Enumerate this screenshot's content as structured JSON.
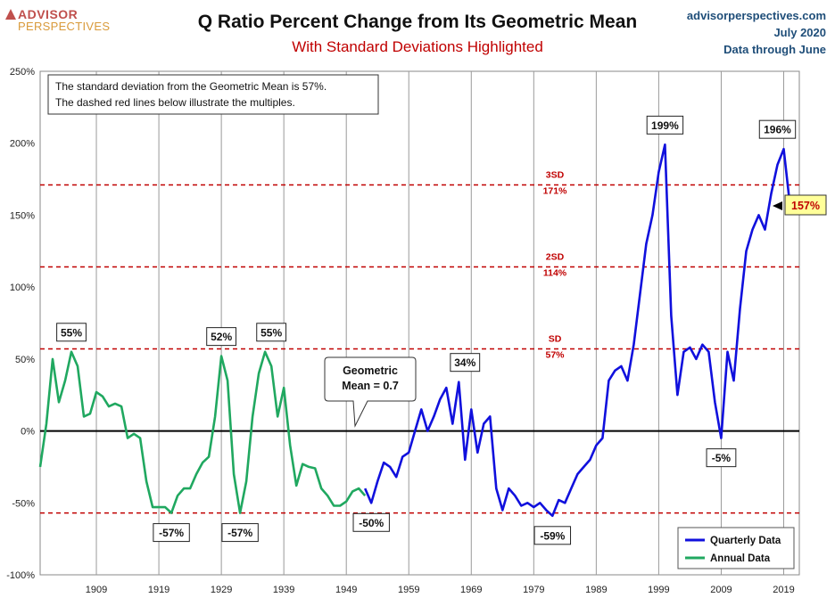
{
  "header": {
    "logo_line1": "ADVISOR",
    "logo_line2": "PERSPECTIVES",
    "title": "Q Ratio Percent Change from Its Geometric Mean",
    "subtitle": "With Standard Deviations Highlighted",
    "site": "advisorperspectives.com",
    "date": "July 2020",
    "data_note": "Data through June"
  },
  "colors": {
    "quarterly": "#1010dd",
    "annual": "#20a860",
    "sd_line": "#c00000",
    "current_badge_bg": "#ffff99",
    "current_badge_text": "#c00000"
  },
  "chart_data": {
    "type": "line",
    "title": "Q Ratio Percent Change from Its Geometric Mean",
    "subtitle": "With Standard Deviations Highlighted",
    "xlabel": "",
    "ylabel": "",
    "xlim": [
      1900,
      2021.5
    ],
    "ylim": [
      -100,
      250
    ],
    "grid": "vertical",
    "legend_position": "bottom-right",
    "y_ticks": [
      "-100%",
      "-50%",
      "0%",
      "50%",
      "100%",
      "150%",
      "200%",
      "250%"
    ],
    "x_ticks": [
      "1909",
      "1919",
      "1929",
      "1939",
      "1949",
      "1959",
      "1969",
      "1979",
      "1989",
      "1999",
      "2009",
      "2019"
    ],
    "info_box": [
      "The standard deviation from the Geometric Mean is 57%.",
      "The dashed red lines below illustrate the multiples."
    ],
    "reference_lines": [
      {
        "label": "SD",
        "value_label": "57%",
        "value": 57
      },
      {
        "label": "2SD",
        "value_label": "114%",
        "value": 114
      },
      {
        "label": "3SD",
        "value_label": "171%",
        "value": 171
      },
      {
        "label": "",
        "value_label": "",
        "value": -57
      }
    ],
    "mean_callout": [
      "Geometric",
      "Mean = 0.7"
    ],
    "annotations": [
      {
        "text": "55%",
        "x": 1905,
        "y": 55
      },
      {
        "text": "52%",
        "x": 1929,
        "y": 52
      },
      {
        "text": "55%",
        "x": 1937,
        "y": 55
      },
      {
        "text": "34%",
        "x": 1968,
        "y": 34
      },
      {
        "text": "199%",
        "x": 2000,
        "y": 199
      },
      {
        "text": "196%",
        "x": 2018,
        "y": 196
      },
      {
        "text": "-57%",
        "x": 1921,
        "y": -57
      },
      {
        "text": "-57%",
        "x": 1932,
        "y": -57
      },
      {
        "text": "-50%",
        "x": 1953,
        "y": -50
      },
      {
        "text": "-59%",
        "x": 1982,
        "y": -59
      },
      {
        "text": "-5%",
        "x": 2009,
        "y": -5
      }
    ],
    "current_value": "157%",
    "series": [
      {
        "name": "Annual Data",
        "x": [
          1900,
          1901,
          1902,
          1903,
          1904,
          1905,
          1906,
          1907,
          1908,
          1909,
          1910,
          1911,
          1912,
          1913,
          1914,
          1915,
          1916,
          1917,
          1918,
          1919,
          1920,
          1921,
          1922,
          1923,
          1924,
          1925,
          1926,
          1927,
          1928,
          1929,
          1930,
          1931,
          1932,
          1933,
          1934,
          1935,
          1936,
          1937,
          1938,
          1939,
          1940,
          1941,
          1942,
          1943,
          1944,
          1945,
          1946,
          1947,
          1948,
          1949,
          1950,
          1951,
          1952
        ],
        "values": [
          -25,
          5,
          50,
          20,
          35,
          55,
          45,
          10,
          12,
          27,
          24,
          17,
          19,
          17,
          -5,
          -2,
          -5,
          -35,
          -53,
          -53,
          -53,
          -57,
          -45,
          -40,
          -40,
          -30,
          -22,
          -18,
          10,
          52,
          35,
          -30,
          -57,
          -35,
          10,
          40,
          55,
          45,
          10,
          30,
          -10,
          -38,
          -23,
          -25,
          -26,
          -40,
          -45,
          -52,
          -52,
          -49,
          -42,
          -40,
          -45
        ]
      },
      {
        "name": "Quarterly Data",
        "x": [
          1952,
          1953,
          1954,
          1955,
          1956,
          1957,
          1958,
          1959,
          1960,
          1961,
          1962,
          1963,
          1964,
          1965,
          1966,
          1967,
          1968,
          1969,
          1970,
          1971,
          1972,
          1973,
          1974,
          1975,
          1976,
          1977,
          1978,
          1979,
          1980,
          1981,
          1982,
          1983,
          1984,
          1985,
          1986,
          1987,
          1988,
          1989,
          1990,
          1991,
          1992,
          1993,
          1994,
          1995,
          1996,
          1997,
          1998,
          1999,
          2000,
          2001,
          2002,
          2003,
          2004,
          2005,
          2006,
          2007,
          2008,
          2009,
          2010,
          2011,
          2012,
          2013,
          2014,
          2015,
          2016,
          2017,
          2018,
          2019,
          2020
        ],
        "values": [
          -40,
          -50,
          -35,
          -22,
          -25,
          -32,
          -18,
          -15,
          0,
          15,
          0,
          10,
          22,
          30,
          5,
          34,
          -20,
          15,
          -15,
          5,
          10,
          -40,
          -55,
          -40,
          -45,
          -52,
          -50,
          -53,
          -50,
          -55,
          -59,
          -48,
          -50,
          -40,
          -30,
          -25,
          -20,
          -10,
          -5,
          35,
          42,
          45,
          35,
          60,
          95,
          130,
          150,
          180,
          199,
          80,
          25,
          55,
          58,
          50,
          60,
          55,
          20,
          -5,
          55,
          35,
          85,
          125,
          140,
          150,
          140,
          165,
          185,
          196,
          157
        ]
      }
    ]
  }
}
